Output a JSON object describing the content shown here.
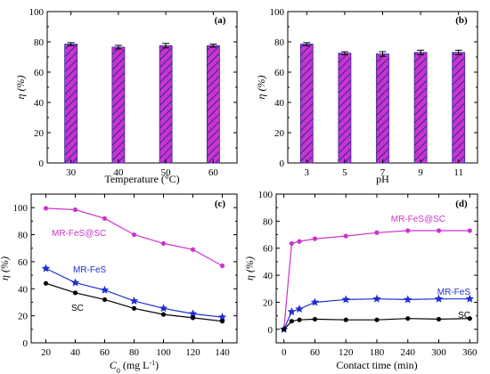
{
  "chart_data": [
    {
      "panel": "(a)",
      "type": "bar",
      "categories": [
        "30",
        "40",
        "50",
        "60"
      ],
      "values": [
        78.5,
        76.5,
        77.5,
        77.5
      ],
      "errors": [
        1.0,
        1.2,
        1.5,
        1.0
      ],
      "xlabel": "Temperature (°C)",
      "ylabel": "η (%)",
      "ylim": [
        0,
        100
      ],
      "yticks": [
        0,
        20,
        40,
        60,
        80,
        100
      ],
      "bar_color": "#cc33cc",
      "hatch_color": "#2a2a9a"
    },
    {
      "panel": "(b)",
      "type": "bar",
      "categories": [
        "3",
        "5",
        "7",
        "9",
        "11"
      ],
      "values": [
        78.5,
        72.5,
        72.0,
        73.0,
        73.0
      ],
      "errors": [
        1.0,
        1.0,
        1.5,
        1.5,
        1.5
      ],
      "xlabel": "pH",
      "ylabel": "η (%)",
      "ylim": [
        0,
        100
      ],
      "yticks": [
        0,
        20,
        40,
        60,
        80,
        100
      ],
      "bar_color": "#cc33cc",
      "hatch_color": "#2a2a9a"
    },
    {
      "panel": "(c)",
      "type": "line",
      "xlabel_main": "C",
      "xlabel_sub": "0",
      "xlabel_rest": " (mg L",
      "xlabel_sup": "-1",
      "xlabel_end": ")",
      "ylabel": "η (%)",
      "xlim": [
        10,
        150
      ],
      "ylim": [
        0,
        110
      ],
      "xticks": [
        20,
        40,
        60,
        80,
        100,
        120,
        140
      ],
      "yticks": [
        0,
        20,
        40,
        60,
        80,
        100
      ],
      "series": [
        {
          "name": "MR-FeS@SC",
          "color": "#cc33cc",
          "marker": "circle",
          "x": [
            20,
            40,
            60,
            80,
            100,
            120,
            140
          ],
          "y": [
            99.5,
            98.5,
            92,
            80,
            73.5,
            69,
            57
          ]
        },
        {
          "name": "MR-FeS",
          "color": "#1f2fd0",
          "marker": "star",
          "x": [
            20,
            40,
            60,
            80,
            100,
            120,
            140
          ],
          "y": [
            55,
            44.5,
            39,
            31,
            25.5,
            21.5,
            19
          ]
        },
        {
          "name": "SC",
          "color": "#000000",
          "marker": "circle",
          "x": [
            20,
            40,
            60,
            80,
            100,
            120,
            140
          ],
          "y": [
            44,
            37,
            32,
            25.5,
            21,
            18.5,
            16
          ]
        }
      ]
    },
    {
      "panel": "(d)",
      "type": "line",
      "xlabel": "Contact time (min)",
      "ylabel": "η (%)",
      "xlim": [
        -15,
        375
      ],
      "ylim": [
        -10,
        100
      ],
      "xticks": [
        0,
        60,
        120,
        180,
        240,
        300,
        360
      ],
      "yticks": [
        0,
        20,
        40,
        60,
        80,
        100
      ],
      "series": [
        {
          "name": "MR-FeS@SC",
          "color": "#cc33cc",
          "marker": "circle",
          "x": [
            0,
            15,
            30,
            60,
            120,
            180,
            240,
            300,
            360
          ],
          "y": [
            0,
            63.5,
            65,
            67,
            69,
            71.5,
            73,
            73,
            73
          ]
        },
        {
          "name": "MR-FeS",
          "color": "#1f2fd0",
          "marker": "star",
          "x": [
            0,
            15,
            30,
            60,
            120,
            180,
            240,
            300,
            360
          ],
          "y": [
            0,
            13,
            15,
            20,
            22,
            22.5,
            22,
            22.5,
            22.5
          ]
        },
        {
          "name": "SC",
          "color": "#000000",
          "marker": "circle",
          "x": [
            0,
            15,
            30,
            60,
            120,
            180,
            240,
            300,
            360
          ],
          "y": [
            0,
            6,
            7,
            7.5,
            7,
            7,
            8,
            7.5,
            8
          ]
        }
      ]
    }
  ]
}
